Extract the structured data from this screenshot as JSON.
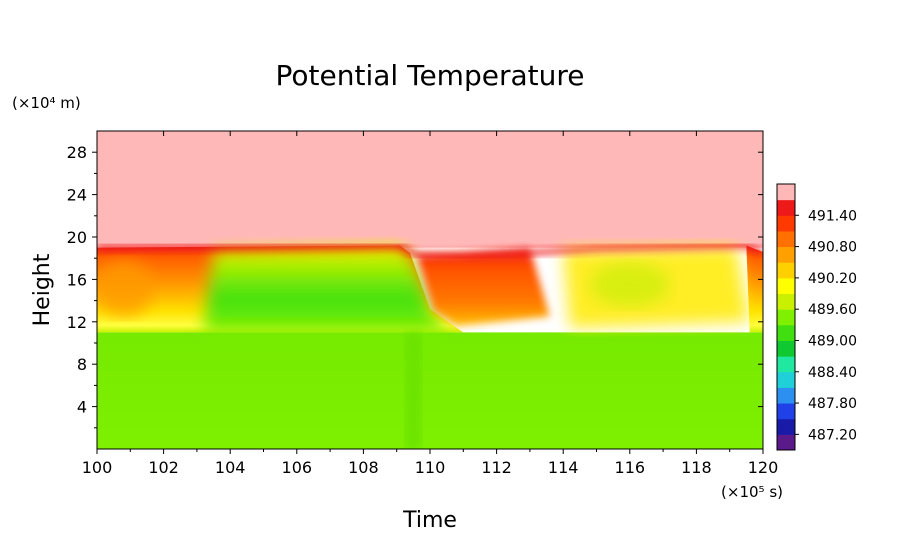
{
  "chart_data": {
    "type": "heatmap",
    "title": "Potential Temperature",
    "xlabel": "Time",
    "ylabel": "Height",
    "x_unit_label": "(×10⁵ s)",
    "y_unit_label": "(×10⁴ m)",
    "xlim": [
      100,
      120
    ],
    "ylim": [
      0,
      30
    ],
    "x_ticks": [
      "100",
      "102",
      "104",
      "106",
      "108",
      "110",
      "112",
      "114",
      "116",
      "118",
      "120"
    ],
    "x_tick_values": [
      100,
      102,
      104,
      106,
      108,
      110,
      112,
      114,
      116,
      118,
      120
    ],
    "y_ticks": [
      "4",
      "8",
      "12",
      "16",
      "20",
      "24",
      "28"
    ],
    "y_tick_values": [
      4,
      8,
      12,
      16,
      20,
      24,
      28
    ],
    "colorbar_labels": [
      "487.20",
      "487.80",
      "488.40",
      "489.00",
      "489.60",
      "490.20",
      "490.80",
      "491.40"
    ],
    "colorbar_levels": [
      487.2,
      487.8,
      488.4,
      489.0,
      489.6,
      490.2,
      490.8,
      491.4
    ],
    "colorbar_colors": [
      "#5a1a8a",
      "#1a1aa8",
      "#2040e8",
      "#2c90f0",
      "#20d0d8",
      "#20e8a0",
      "#10c830",
      "#40e010",
      "#7ef000",
      "#c8f000",
      "#ffff00",
      "#ffd000",
      "#ffa000",
      "#ff7000",
      "#ff3a00",
      "#ee1a1a",
      "#ffb8b8"
    ],
    "fields": {
      "lower_layer": {
        "y_range": [
          0,
          11
        ],
        "value": 489.7,
        "color": "#7ef000"
      },
      "upper_layer": {
        "y_range": [
          19,
          30
        ],
        "value": 491.7,
        "color": "#ffb8b8"
      },
      "middle_layer": {
        "y_range": [
          11,
          19
        ],
        "value_range": [
          489.4,
          491.5
        ]
      },
      "transition_time": 109.5
    },
    "grid": false,
    "legend": "colorbar-right"
  }
}
